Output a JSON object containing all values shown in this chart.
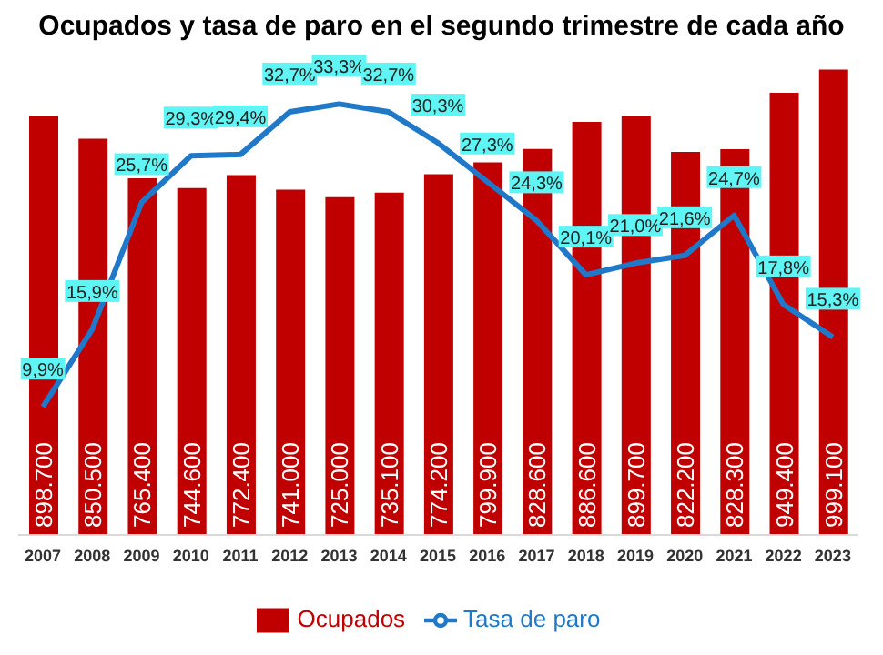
{
  "chart_data": {
    "type": "bar",
    "title": "Ocupados y tasa de paro en el segundo trimestre de cada año",
    "categories": [
      "2007",
      "2008",
      "2009",
      "2010",
      "2011",
      "2012",
      "2013",
      "2014",
      "2015",
      "2016",
      "2017",
      "2018",
      "2019",
      "2020",
      "2021",
      "2022",
      "2023"
    ],
    "series": [
      {
        "name": "Ocupados",
        "color": "#c00000",
        "values": [
          898700,
          850500,
          765400,
          744600,
          772400,
          741000,
          725000,
          735100,
          774200,
          799900,
          828600,
          886600,
          899700,
          822200,
          828300,
          949400,
          999100
        ],
        "value_labels": [
          "898.700",
          "850.500",
          "765.400",
          "744.600",
          "772.400",
          "741.000",
          "725.000",
          "735.100",
          "774.200",
          "799.900",
          "828.600",
          "886.600",
          "899.700",
          "822.200",
          "828.300",
          "949.400",
          "999.100"
        ]
      },
      {
        "name": "Tasa de paro",
        "type": "line",
        "axis": "y2",
        "color": "#1f78c8",
        "values": [
          9.9,
          15.9,
          25.7,
          29.3,
          29.4,
          32.7,
          33.3,
          32.7,
          30.3,
          27.3,
          24.3,
          20.1,
          21.0,
          21.6,
          24.7,
          17.8,
          15.3
        ],
        "value_labels": [
          "9,9%",
          "15,9%",
          "25,7%",
          "29,3%",
          "29,4%",
          "32,7%",
          "33,3%",
          "32,7%",
          "30,3%",
          "27,3%",
          "24,3%",
          "20,1%",
          "21,0%",
          "21,6%",
          "24,7%",
          "17,8%",
          "15,3%"
        ]
      }
    ],
    "tick_labels": "x",
    "legend": "bottom",
    "marker": "none",
    "line_style": "solid"
  }
}
